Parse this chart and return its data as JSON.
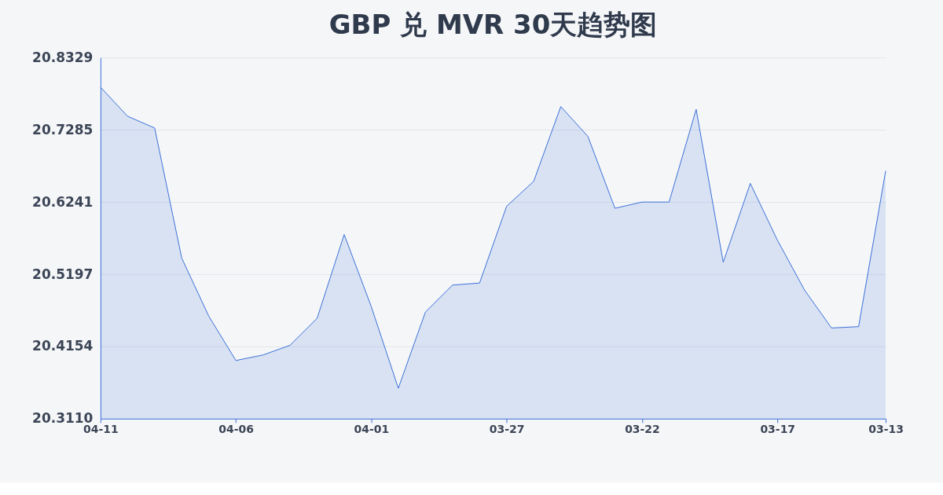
{
  "chart_data": {
    "type": "area",
    "title": "GBP 兑 MVR 30天趋势图",
    "categories": [
      "04-11",
      null,
      null,
      null,
      null,
      "04-06",
      null,
      null,
      null,
      null,
      "04-01",
      null,
      null,
      null,
      null,
      "03-27",
      null,
      null,
      null,
      null,
      "03-22",
      null,
      null,
      null,
      null,
      "03-17",
      null,
      null,
      null,
      "03-13"
    ],
    "series": [
      {
        "color": "#3a6fd8",
        "values": [
          20.79,
          20.748,
          20.731,
          20.543,
          20.459,
          20.395,
          20.403,
          20.417,
          20.456,
          20.577,
          20.473,
          20.355,
          20.465,
          20.504,
          20.507,
          20.618,
          20.654,
          20.762,
          20.719,
          20.615,
          20.624,
          20.624,
          20.758,
          20.537,
          20.651,
          20.569,
          20.497,
          20.442,
          20.444,
          20.669
        ]
      }
    ],
    "ylim": [
      20.311,
      20.8329
    ],
    "yticks": [
      {
        "value": 20.311,
        "label": "20.3110"
      },
      20.4154,
      20.5197,
      20.6241,
      20.7285,
      20.8329
    ],
    "grid": "y"
  }
}
